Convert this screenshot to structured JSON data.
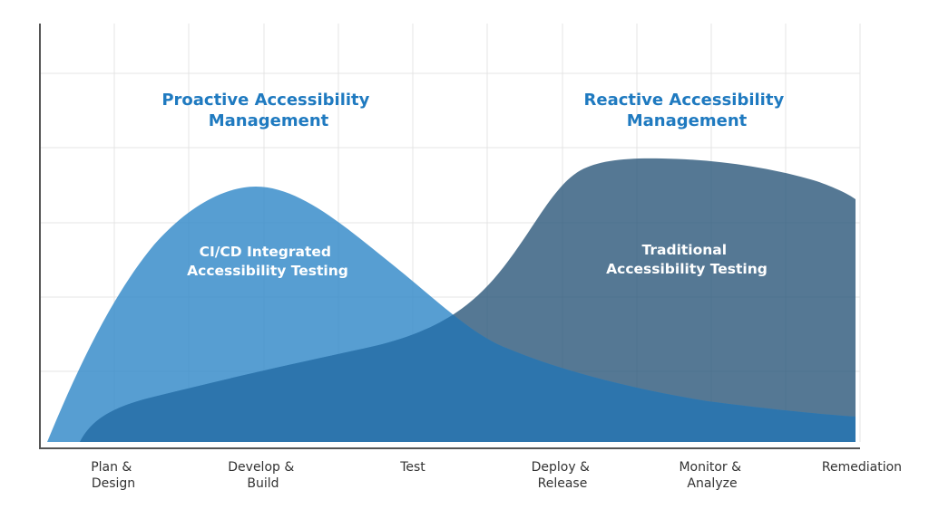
{
  "chart_data": {
    "type": "area",
    "categories": [
      [
        "Plan &",
        "Design"
      ],
      [
        "Develop &",
        "Build"
      ],
      [
        "Test"
      ],
      [
        "Deploy &",
        "Release"
      ],
      [
        "Monitor &",
        "Analyze"
      ],
      [
        "Remediation"
      ]
    ],
    "zones": [
      {
        "title": [
          "Proactive Accessibility",
          "Management"
        ]
      },
      {
        "title": [
          "Reactive Accessibility",
          "Management"
        ]
      }
    ],
    "series": [
      {
        "name": [
          "CI/CD Integrated",
          "Accessibility Testing"
        ],
        "color": "#3a8dca"
      },
      {
        "name": [
          "Traditional",
          "Accessibility Testing"
        ],
        "color": "#2f5a7c"
      }
    ],
    "overlap_color": "#2d75ad",
    "title_color": "#1f7ac0",
    "label_color": "#ffffff",
    "grid": true,
    "axis_color": "#555555",
    "tick_color": "#333333"
  }
}
